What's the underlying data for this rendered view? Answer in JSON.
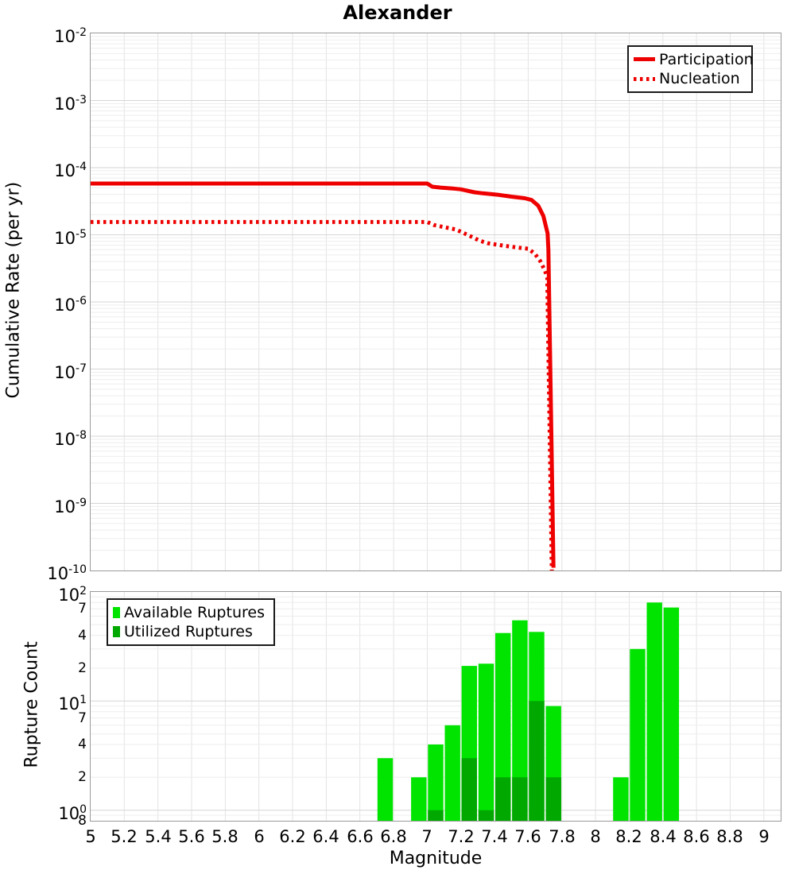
{
  "title": "Alexander",
  "chart_data": [
    {
      "type": "line",
      "panel": "top",
      "ylabel": "Cumulative Rate (per yr)",
      "xlim": [
        5,
        9.1
      ],
      "ylim": [
        1e-10,
        0.01
      ],
      "y_scale": "log",
      "grid": true,
      "legend_position": "top-right",
      "y_tick_exponents": [
        -2,
        -3,
        -4,
        -5,
        -6,
        -7,
        -8,
        -9,
        -10
      ],
      "legend": [
        {
          "label": "Participation",
          "style": "solid",
          "color": "#ee0000"
        },
        {
          "label": "Nucleation",
          "style": "dotted",
          "color": "#ee0000"
        }
      ],
      "series": [
        {
          "name": "Participation",
          "style": "solid",
          "color": "#ee0000",
          "points": [
            [
              5.0,
              5.8e-05
            ],
            [
              7.0,
              5.8e-05
            ],
            [
              7.03,
              5.2e-05
            ],
            [
              7.08,
              5.05e-05
            ],
            [
              7.15,
              4.9e-05
            ],
            [
              7.2,
              4.75e-05
            ],
            [
              7.28,
              4.3e-05
            ],
            [
              7.33,
              4.15e-05
            ],
            [
              7.42,
              3.95e-05
            ],
            [
              7.5,
              3.7e-05
            ],
            [
              7.58,
              3.5e-05
            ],
            [
              7.62,
              3.3e-05
            ],
            [
              7.66,
              2.7e-05
            ],
            [
              7.69,
              1.9e-05
            ],
            [
              7.715,
              1.05e-05
            ],
            [
              7.72,
              6e-06
            ],
            [
              7.75,
              1.1e-10
            ]
          ]
        },
        {
          "name": "Nucleation",
          "style": "dotted",
          "color": "#ee0000",
          "points": [
            [
              5.0,
              1.55e-05
            ],
            [
              7.0,
              1.55e-05
            ],
            [
              7.04,
              1.4e-05
            ],
            [
              7.1,
              1.3e-05
            ],
            [
              7.17,
              1.2e-05
            ],
            [
              7.22,
              1.05e-05
            ],
            [
              7.27,
              9.2e-06
            ],
            [
              7.31,
              8.2e-06
            ],
            [
              7.36,
              7.5e-06
            ],
            [
              7.45,
              6.9e-06
            ],
            [
              7.55,
              6.4e-06
            ],
            [
              7.6,
              6.2e-06
            ],
            [
              7.64,
              5.2e-06
            ],
            [
              7.67,
              4.1e-06
            ],
            [
              7.7,
              2.9e-06
            ],
            [
              7.713,
              2.3e-06
            ],
            [
              7.74,
              1e-10
            ]
          ]
        }
      ]
    },
    {
      "type": "bar",
      "panel": "bottom",
      "ylabel": "Rupture Count",
      "xlabel": "Magnitude",
      "xlim": [
        5,
        9.1
      ],
      "ylim": [
        0.8,
        100
      ],
      "y_scale": "log",
      "grid": true,
      "legend_position": "top-left",
      "bin_width": 0.1,
      "x_ticks": [
        {
          "v": 5,
          "label": "5"
        },
        {
          "v": 5.2,
          "label": "5.2"
        },
        {
          "v": 5.4,
          "label": "5.4"
        },
        {
          "v": 5.6,
          "label": "5.6"
        },
        {
          "v": 5.8,
          "label": "5.8"
        },
        {
          "v": 6,
          "label": "6"
        },
        {
          "v": 6.2,
          "label": "6.2"
        },
        {
          "v": 6.4,
          "label": "6.4"
        },
        {
          "v": 6.6,
          "label": "6.6"
        },
        {
          "v": 6.8,
          "label": "6.8"
        },
        {
          "v": 7,
          "label": "7"
        },
        {
          "v": 7.2,
          "label": "7.2"
        },
        {
          "v": 7.4,
          "label": "7.4"
        },
        {
          "v": 7.6,
          "label": "7.6"
        },
        {
          "v": 7.8,
          "label": "7.8"
        },
        {
          "v": 8,
          "label": "8"
        },
        {
          "v": 8.2,
          "label": "8.2"
        },
        {
          "v": 8.4,
          "label": "8.4"
        },
        {
          "v": 8.6,
          "label": "8.6"
        },
        {
          "v": 8.8,
          "label": "8.8"
        },
        {
          "v": 9,
          "label": "9"
        }
      ],
      "y_ticks": [
        {
          "v": 100,
          "major": true,
          "base": "10",
          "exp": "2"
        },
        {
          "v": 70,
          "major": false,
          "label": "7"
        },
        {
          "v": 40,
          "major": false,
          "label": "4"
        },
        {
          "v": 20,
          "major": false,
          "label": "2"
        },
        {
          "v": 10,
          "major": true,
          "base": "10",
          "exp": "1"
        },
        {
          "v": 7,
          "major": false,
          "label": "7"
        },
        {
          "v": 4,
          "major": false,
          "label": "4"
        },
        {
          "v": 2,
          "major": false,
          "label": "2"
        },
        {
          "v": 1,
          "major": true,
          "base": "10",
          "exp": "0"
        },
        {
          "v": 0.8,
          "major": false,
          "label": "8"
        }
      ],
      "legend": [
        {
          "label": "Available Ruptures",
          "color": "#00e400"
        },
        {
          "label": "Utilized Ruptures",
          "color": "#00a800"
        }
      ],
      "series": [
        {
          "name": "Available Ruptures",
          "color": "#00e400",
          "bars": [
            [
              6.75,
              3
            ],
            [
              6.95,
              2
            ],
            [
              7.05,
              4
            ],
            [
              7.15,
              6
            ],
            [
              7.25,
              21
            ],
            [
              7.35,
              22
            ],
            [
              7.45,
              42
            ],
            [
              7.55,
              55
            ],
            [
              7.65,
              43
            ],
            [
              7.75,
              9
            ],
            [
              8.15,
              2
            ],
            [
              8.25,
              30
            ],
            [
              8.35,
              80
            ],
            [
              8.45,
              72
            ]
          ]
        },
        {
          "name": "Utilized Ruptures",
          "color": "#00a800",
          "bars": [
            [
              7.05,
              1
            ],
            [
              7.25,
              3
            ],
            [
              7.35,
              1
            ],
            [
              7.45,
              2
            ],
            [
              7.55,
              2
            ],
            [
              7.65,
              10
            ],
            [
              7.75,
              2
            ]
          ]
        }
      ]
    }
  ]
}
